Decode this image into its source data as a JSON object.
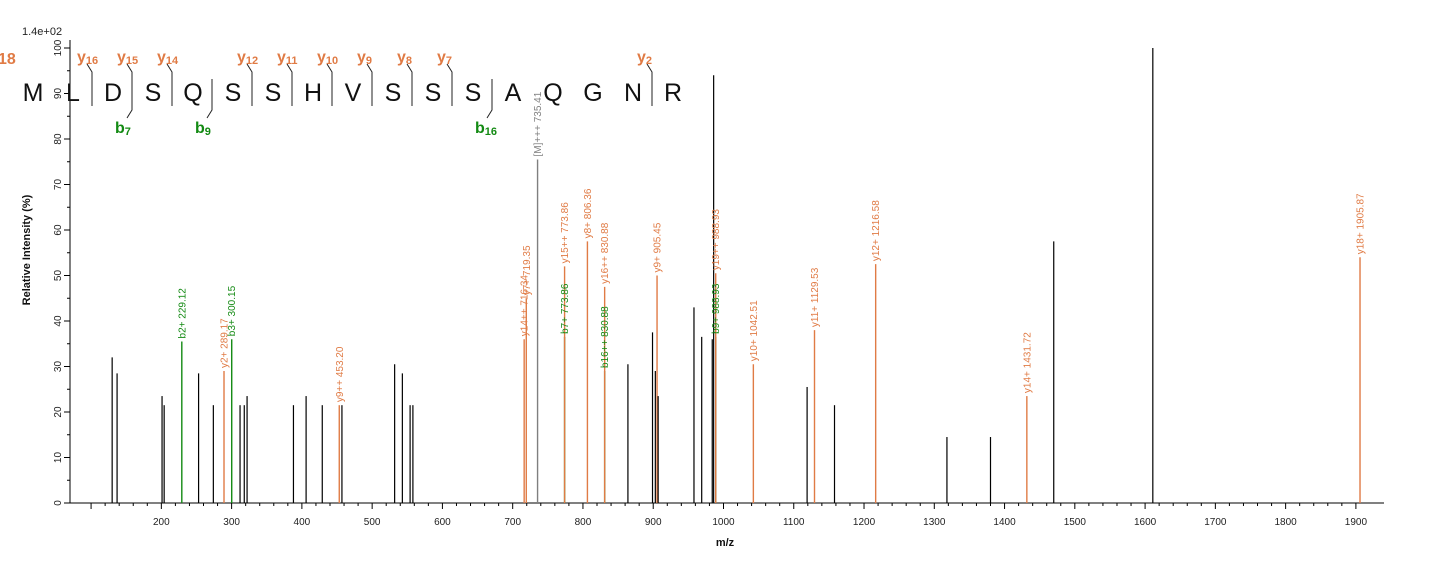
{
  "chart_data": {
    "type": "bar",
    "xlabel": "m/z",
    "ylabel": "Relative   Intensity (%)",
    "max_intensity_label": "1.4e+02",
    "xlim": [
      70,
      1940
    ],
    "ylim": [
      0,
      100
    ],
    "x_ticks": [
      200,
      300,
      400,
      500,
      600,
      700,
      800,
      900,
      1000,
      1100,
      1200,
      1300,
      1400,
      1500,
      1600,
      1700,
      1800,
      1900
    ],
    "y_ticks": [
      0,
      10,
      20,
      30,
      40,
      50,
      60,
      70,
      80,
      90,
      100
    ],
    "colors": {
      "y_ion": "#e07b45",
      "b_ion": "#138a13",
      "precursor": "#7f7f7f",
      "unassigned": "#000000",
      "sequence": "#111111"
    },
    "peaks": [
      {
        "mz": 130,
        "intensity": 32,
        "kind": "none"
      },
      {
        "mz": 137,
        "intensity": 28.5,
        "kind": "none"
      },
      {
        "mz": 201,
        "intensity": 23.5,
        "kind": "none"
      },
      {
        "mz": 204,
        "intensity": 21.5,
        "kind": "none"
      },
      {
        "mz": 229.12,
        "intensity": 35.5,
        "kind": "b",
        "label": "b2+ 229.12"
      },
      {
        "mz": 253,
        "intensity": 28.5,
        "kind": "none"
      },
      {
        "mz": 274,
        "intensity": 21.5,
        "kind": "none"
      },
      {
        "mz": 289.17,
        "intensity": 29,
        "kind": "y",
        "label": "y2+ 289.17"
      },
      {
        "mz": 300.15,
        "intensity": 36,
        "kind": "b",
        "label": "b3+ 300.15"
      },
      {
        "mz": 312,
        "intensity": 21.5,
        "kind": "none"
      },
      {
        "mz": 318,
        "intensity": 21.5,
        "kind": "none"
      },
      {
        "mz": 322,
        "intensity": 23.5,
        "kind": "none"
      },
      {
        "mz": 388,
        "intensity": 21.5,
        "kind": "none"
      },
      {
        "mz": 406,
        "intensity": 23.5,
        "kind": "none"
      },
      {
        "mz": 429,
        "intensity": 21.5,
        "kind": "none"
      },
      {
        "mz": 453.2,
        "intensity": 21.5,
        "kind": "y",
        "label": "y9++ 453.20"
      },
      {
        "mz": 457,
        "intensity": 21.5,
        "kind": "none"
      },
      {
        "mz": 532,
        "intensity": 30.5,
        "kind": "none"
      },
      {
        "mz": 543,
        "intensity": 28.5,
        "kind": "none"
      },
      {
        "mz": 554,
        "intensity": 21.5,
        "kind": "none"
      },
      {
        "mz": 558,
        "intensity": 21.5,
        "kind": "none"
      },
      {
        "mz": 716.34,
        "intensity": 36,
        "kind": "y",
        "label": "y14++ 716.34"
      },
      {
        "mz": 719.35,
        "intensity": 45,
        "kind": "y",
        "label": "y7+ 719.35"
      },
      {
        "mz": 735.41,
        "intensity": 75.5,
        "kind": "precursor",
        "label": "[M]+++ 735.41"
      },
      {
        "mz": 773.86,
        "intensity": 36.5,
        "kind": "b",
        "label": "b7+ 773.86"
      },
      {
        "mz": 773.86,
        "intensity": 52,
        "kind": "y",
        "label": "y15++ 773.86"
      },
      {
        "mz": 806.36,
        "intensity": 57.5,
        "kind": "y",
        "label": "y8+ 806.36"
      },
      {
        "mz": 830.88,
        "intensity": 29,
        "kind": "b",
        "label": "b16++ 830.88"
      },
      {
        "mz": 830.88,
        "intensity": 47.5,
        "kind": "y",
        "label": "y16++ 830.88"
      },
      {
        "mz": 864,
        "intensity": 30.5,
        "kind": "none"
      },
      {
        "mz": 899,
        "intensity": 37.5,
        "kind": "none"
      },
      {
        "mz": 903,
        "intensity": 29,
        "kind": "none"
      },
      {
        "mz": 905.45,
        "intensity": 50,
        "kind": "y",
        "label": "y9+ 905.45"
      },
      {
        "mz": 907,
        "intensity": 23.5,
        "kind": "none"
      },
      {
        "mz": 958,
        "intensity": 43,
        "kind": "none"
      },
      {
        "mz": 969,
        "intensity": 36.5,
        "kind": "none"
      },
      {
        "mz": 984,
        "intensity": 36,
        "kind": "none"
      },
      {
        "mz": 986,
        "intensity": 94,
        "kind": "none"
      },
      {
        "mz": 988.93,
        "intensity": 36.5,
        "kind": "b",
        "label": "b9+ 988.93"
      },
      {
        "mz": 988.93,
        "intensity": 50.5,
        "kind": "y",
        "label": "y19++ 988.93"
      },
      {
        "mz": 1042.51,
        "intensity": 30.5,
        "kind": "y",
        "label": "y10+ 1042.51"
      },
      {
        "mz": 1119,
        "intensity": 25.5,
        "kind": "none"
      },
      {
        "mz": 1129.53,
        "intensity": 38,
        "kind": "y",
        "label": "y11+ 1129.53"
      },
      {
        "mz": 1158,
        "intensity": 21.5,
        "kind": "none"
      },
      {
        "mz": 1216.58,
        "intensity": 52.5,
        "kind": "y",
        "label": "y12+ 1216.58"
      },
      {
        "mz": 1318,
        "intensity": 14.5,
        "kind": "none"
      },
      {
        "mz": 1380,
        "intensity": 14.5,
        "kind": "none"
      },
      {
        "mz": 1431.72,
        "intensity": 23.5,
        "kind": "y",
        "label": "y14+ 1431.72"
      },
      {
        "mz": 1470,
        "intensity": 57.5,
        "kind": "none"
      },
      {
        "mz": 1611,
        "intensity": 100,
        "kind": "none"
      },
      {
        "mz": 1905.87,
        "intensity": 54,
        "kind": "y",
        "label": "y18+ 1905.87"
      }
    ],
    "sequence": {
      "letters": [
        "M",
        "L",
        "D",
        "S",
        "Q",
        "S",
        "S",
        "H",
        "V",
        "S",
        "S",
        "S",
        "A",
        "Q",
        "G",
        "N",
        "R"
      ],
      "y_fragments": [
        {
          "label": "y",
          "sub": "16",
          "after_index": 1
        },
        {
          "label": "y",
          "sub": "15",
          "after_index": 2
        },
        {
          "label": "y",
          "sub": "14",
          "after_index": 3
        },
        {
          "label": "y",
          "sub": "12",
          "after_index": 5
        },
        {
          "label": "y",
          "sub": "11",
          "after_index": 6
        },
        {
          "label": "y",
          "sub": "10",
          "after_index": 7
        },
        {
          "label": "y",
          "sub": "9",
          "after_index": 8
        },
        {
          "label": "y",
          "sub": "8",
          "after_index": 9
        },
        {
          "label": "y",
          "sub": "7",
          "after_index": 10
        },
        {
          "label": "y",
          "sub": "2",
          "after_index": 15
        }
      ],
      "b_fragments": [
        {
          "label": "b",
          "sub": "7",
          "after_index": 2
        },
        {
          "label": "b",
          "sub": "9",
          "after_index": 4
        },
        {
          "label": "b",
          "sub": "16",
          "after_index": 11
        }
      ],
      "partial_left_label": "18"
    }
  }
}
